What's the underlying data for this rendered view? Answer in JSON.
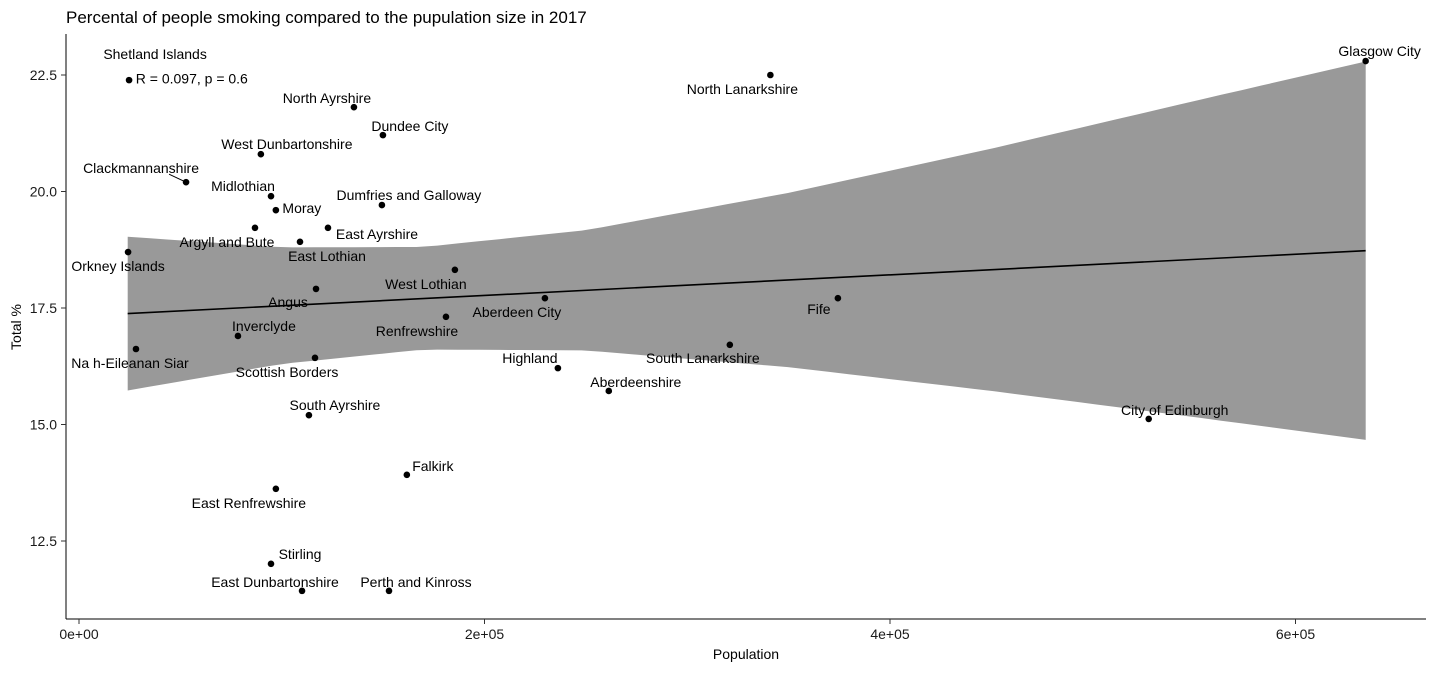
{
  "chart_data": {
    "type": "scatter",
    "title": "Percental of people smoking compared to the pupulation size in 2017",
    "xlabel": "Population",
    "ylabel": "Total %",
    "xlim": [
      -6000,
      668000
    ],
    "ylim": [
      11.3,
      23.4
    ],
    "x_ticks": [
      0,
      200000,
      400000,
      600000
    ],
    "x_tick_labels": [
      "0e+00",
      "2e+05",
      "4e+05",
      "6e+05"
    ],
    "y_ticks": [
      12.5,
      15.0,
      17.5,
      20.0,
      22.5
    ],
    "y_tick_labels": [
      "12.5",
      "15.0",
      "17.5",
      "20.0",
      "22.5"
    ],
    "grid": false,
    "annotation": "R = 0.097, p = 0.6",
    "colors": {
      "points": "#000000",
      "ribbon": "#999999",
      "line": "#000000"
    },
    "points": [
      {
        "label": "Shetland Islands",
        "x": 24700,
        "y": 22.39
      },
      {
        "label": "North Ayrshire",
        "x": 135600,
        "y": 21.81
      },
      {
        "label": "North Lanarkshire",
        "x": 341000,
        "y": 22.5
      },
      {
        "label": "Glasgow City",
        "x": 634600,
        "y": 22.8
      },
      {
        "label": "Dundee City",
        "x": 149900,
        "y": 21.21
      },
      {
        "label": "West Dunbartonshire",
        "x": 89700,
        "y": 20.8
      },
      {
        "label": "Clackmannanshire",
        "x": 52800,
        "y": 20.2
      },
      {
        "label": "Midlothian",
        "x": 94700,
        "y": 19.9
      },
      {
        "label": "Moray",
        "x": 97100,
        "y": 19.6
      },
      {
        "label": "Dumfries and Galloway",
        "x": 149400,
        "y": 19.71
      },
      {
        "label": "East Ayrshire",
        "x": 122800,
        "y": 19.22
      },
      {
        "label": "Argyll and Bute",
        "x": 86800,
        "y": 19.22
      },
      {
        "label": "East Lothian",
        "x": 109000,
        "y": 18.92
      },
      {
        "label": "Orkney Islands",
        "x": 24200,
        "y": 18.7
      },
      {
        "label": "West Lothian",
        "x": 185400,
        "y": 18.32
      },
      {
        "label": "Angus",
        "x": 116900,
        "y": 17.91
      },
      {
        "label": "Aberdeen City",
        "x": 229800,
        "y": 17.71
      },
      {
        "label": "Fife",
        "x": 374300,
        "y": 17.71
      },
      {
        "label": "Renfrewshire",
        "x": 181000,
        "y": 17.31
      },
      {
        "label": "Inverclyde",
        "x": 78400,
        "y": 16.9
      },
      {
        "label": "Na h-Eileanan Siar",
        "x": 28100,
        "y": 16.62
      },
      {
        "label": "Scottish Borders",
        "x": 116400,
        "y": 16.43
      },
      {
        "label": "South Lanarkshire",
        "x": 321000,
        "y": 16.71
      },
      {
        "label": "Highland",
        "x": 236200,
        "y": 16.21
      },
      {
        "label": "Aberdeenshire",
        "x": 261300,
        "y": 15.72
      },
      {
        "label": "City of Edinburgh",
        "x": 527600,
        "y": 15.12
      },
      {
        "label": "South Ayrshire",
        "x": 113400,
        "y": 15.2
      },
      {
        "label": "Falkirk",
        "x": 161700,
        "y": 13.92
      },
      {
        "label": "East Renfrewshire",
        "x": 97100,
        "y": 13.62
      },
      {
        "label": "Stirling",
        "x": 94700,
        "y": 12.01
      },
      {
        "label": "East Dunbartonshire",
        "x": 110000,
        "y": 11.43
      },
      {
        "label": "Perth and Kinross",
        "x": 152900,
        "y": 11.43
      }
    ],
    "regression": {
      "x": [
        24000,
        100000,
        170000,
        250000,
        350000,
        450000,
        550000,
        634600
      ],
      "fit": [
        17.38,
        17.55,
        17.71,
        17.88,
        18.1,
        18.32,
        18.55,
        18.73
      ],
      "lower": [
        15.73,
        16.3,
        16.61,
        16.59,
        16.23,
        15.72,
        15.16,
        14.67
      ],
      "upper": [
        19.03,
        18.8,
        18.81,
        19.17,
        19.97,
        20.92,
        21.94,
        22.79
      ]
    }
  }
}
